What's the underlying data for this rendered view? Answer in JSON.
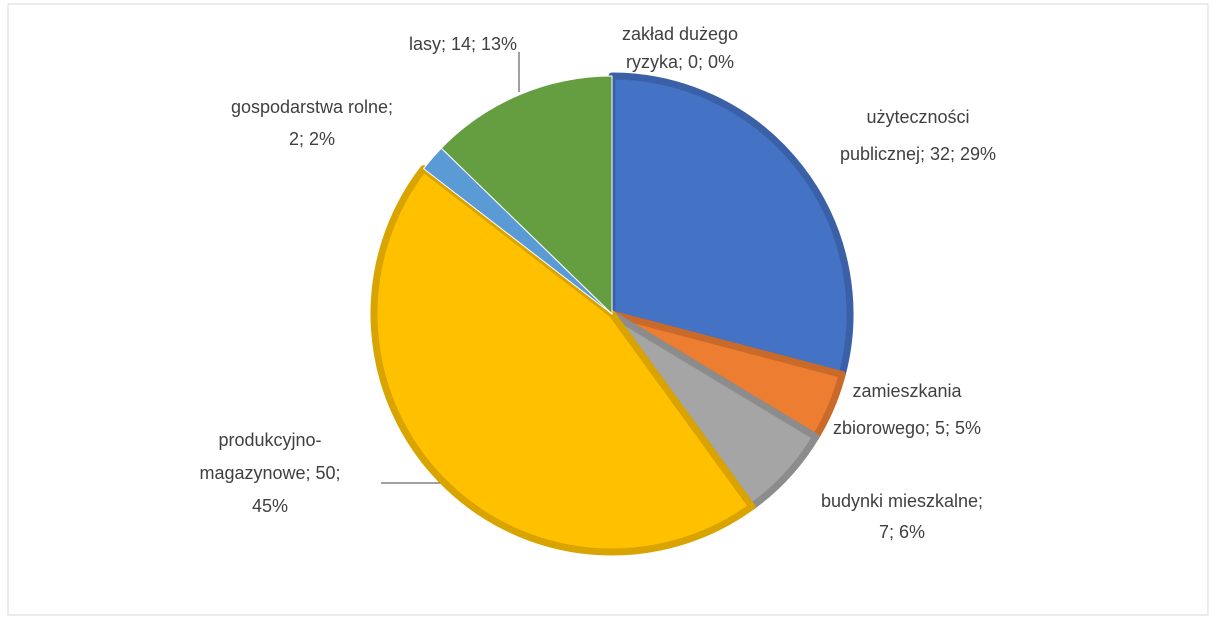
{
  "chart_data": {
    "type": "pie",
    "values": [
      0,
      32,
      5,
      7,
      50,
      2,
      14
    ],
    "value_labels": [
      [
        "zakład dużego",
        "ryzyka; 0; 0%"
      ],
      [
        "użyteczności",
        "publicznej; 32; 29%"
      ],
      [
        "zamieszkania",
        "zbiorowego; 5; 5%"
      ],
      [
        "budynki mieszkalne;",
        "7; 6%"
      ],
      [
        "produkcyjno-",
        "magazynowe; 50;",
        "45%"
      ],
      [
        "gospodarstwa rolne;",
        "2; 2%"
      ],
      [
        "lasy; 14; 13%"
      ]
    ],
    "colors": [
      "#264478",
      "#4472c4",
      "#ed7d31",
      "#a5a5a5",
      "#ffc000",
      "#5b9bd5",
      "#659d41"
    ]
  }
}
